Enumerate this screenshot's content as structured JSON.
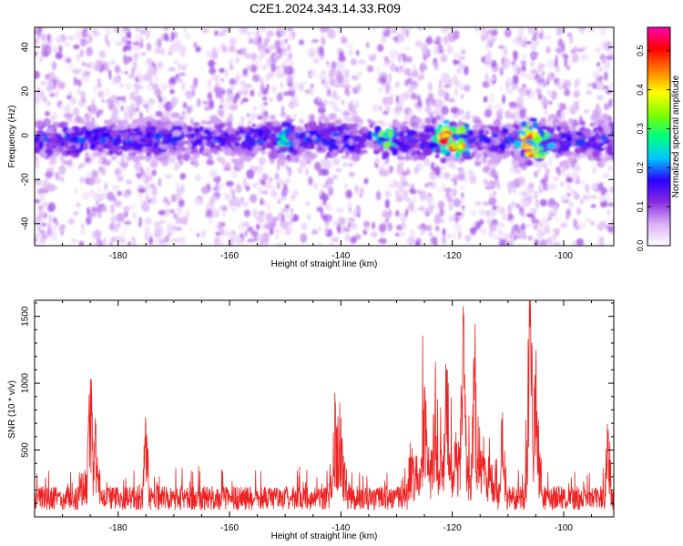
{
  "title": "C2E1.2024.343.14.33.R09",
  "colors": {
    "snr_line": "#ee2222",
    "axis": "#000000",
    "background": "#ffffff"
  },
  "chart_data": [
    {
      "type": "heatmap",
      "title": "C2E1.2024.343.14.33.R09",
      "xlabel": "Height of straight line (km)",
      "ylabel": "Frequency (Hz)",
      "xlim": [
        -195,
        -91
      ],
      "ylim": [
        -50,
        49
      ],
      "xticks": [
        -180,
        -160,
        -140,
        -120,
        -100
      ],
      "yticks": [
        -40,
        -20,
        0,
        20,
        40
      ],
      "grid": false,
      "description_of_data": "Normalized spectral amplitude concentrated in a band around 0 Hz (roughly -10 to +5 Hz) across all heights, strongest near -121 km and -106 km.",
      "band_center_hz": 0,
      "band_halfwidth_hz": 7,
      "peaks": [
        {
          "x": -121,
          "y": 0,
          "value": 0.55
        },
        {
          "x": -119,
          "y": -5,
          "value": 0.5
        },
        {
          "x": -106,
          "y": -8,
          "value": 0.55
        },
        {
          "x": -104,
          "y": -9,
          "value": 0.4
        },
        {
          "x": -132,
          "y": 0,
          "value": 0.35
        },
        {
          "x": -150,
          "y": -4,
          "value": 0.3
        }
      ],
      "colorbar": {
        "label": "Normalized spectral amplitude",
        "range": [
          0,
          0.56
        ],
        "ticks": [
          0.0,
          0.1,
          0.2,
          0.3,
          0.4,
          0.5
        ],
        "tick_labels": [
          "0.0",
          "0.1",
          "0.2",
          "0.3",
          "0.4",
          "0.5"
        ],
        "colormap": [
          "#ffffff",
          "#d9b0f5",
          "#8a2be2",
          "#2a00ff",
          "#00c8ff",
          "#00ff80",
          "#80ff00",
          "#ffff00",
          "#ff8000",
          "#ff0000",
          "#ff00b0"
        ]
      }
    },
    {
      "type": "line",
      "xlabel": "Height of straight line (km)",
      "ylabel": "SNR (10 * v/v)",
      "xlim": [
        -195,
        -91
      ],
      "ylim": [
        0,
        1620
      ],
      "xticks": [
        -180,
        -160,
        -140,
        -120,
        -100
      ],
      "yticks": [
        500,
        1000,
        1500
      ],
      "grid": false,
      "baseline": 200,
      "peaks": [
        {
          "x": -185,
          "y": 1030
        },
        {
          "x": -184,
          "y": 700
        },
        {
          "x": -175,
          "y": 690
        },
        {
          "x": -141,
          "y": 850
        },
        {
          "x": -140,
          "y": 740
        },
        {
          "x": -125,
          "y": 960
        },
        {
          "x": -123,
          "y": 1160
        },
        {
          "x": -121,
          "y": 1100
        },
        {
          "x": -118,
          "y": 1450
        },
        {
          "x": -116,
          "y": 1100
        },
        {
          "x": -111,
          "y": 780
        },
        {
          "x": -106,
          "y": 1620
        },
        {
          "x": -105,
          "y": 1100
        },
        {
          "x": -92,
          "y": 650
        }
      ]
    }
  ]
}
